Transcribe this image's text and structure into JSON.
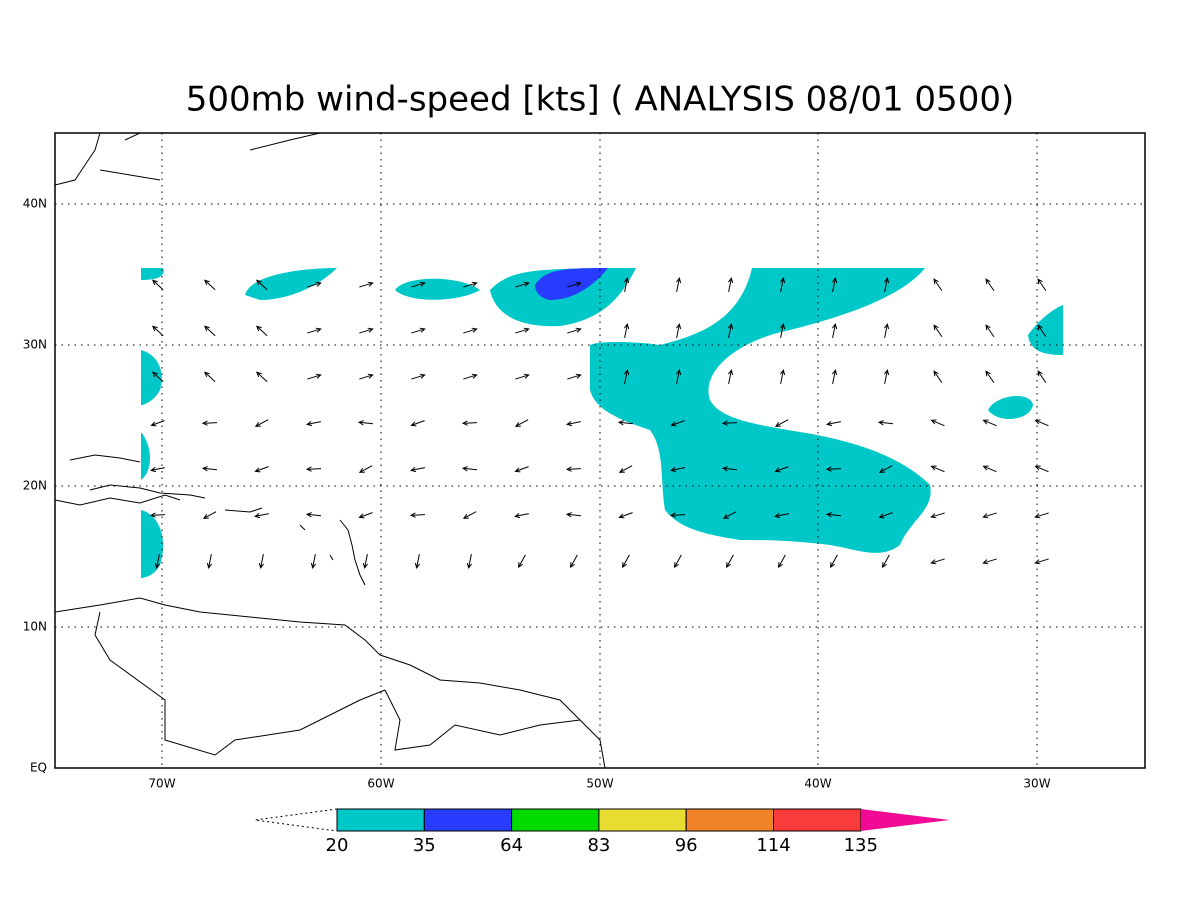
{
  "title": "500mb wind-speed [kts] ( ANALYSIS 08/01 0500)",
  "map": {
    "lon_labels": [
      "70W",
      "60W",
      "50W",
      "40W",
      "30W"
    ],
    "lat_labels": [
      "40N",
      "30N",
      "20N",
      "10N",
      "EQ"
    ]
  },
  "colorbar": {
    "levels": [
      20,
      35,
      64,
      83,
      96,
      114,
      135
    ],
    "colors": [
      "#00c8c8",
      "#283cff",
      "#00dc00",
      "#e6dc32",
      "#f08228",
      "#fa3c3c",
      "#f00a96"
    ]
  }
}
